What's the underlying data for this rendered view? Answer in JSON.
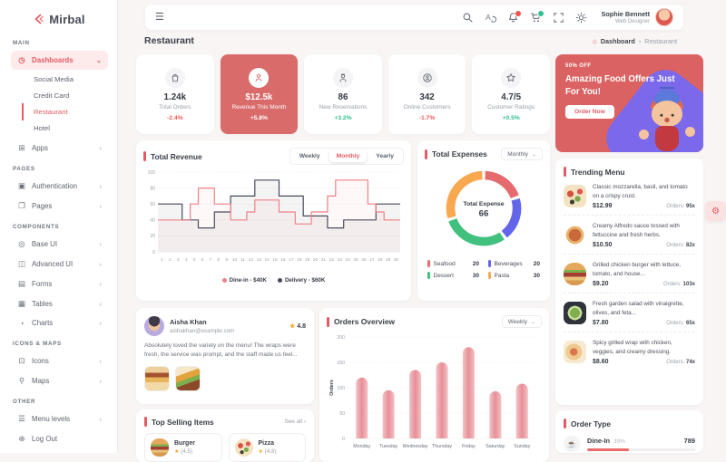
{
  "ui": {
    "chevron_down": "⌄",
    "chevron_right": "›",
    "hamburger": "☰",
    "star": "★",
    "settings_glyph": "⚙",
    "cup_glyph": "☕"
  },
  "sidebar": {
    "logo_text": "Mirbal",
    "section_main": "MAIN",
    "dashboards": {
      "glyph": "◷",
      "label": "Dashboards"
    },
    "dashboard_children": [
      {
        "label": "Social Media",
        "active": false
      },
      {
        "label": "Credit Card",
        "active": false
      },
      {
        "label": "Restaurant",
        "active": true
      },
      {
        "label": "Hotel",
        "active": false
      }
    ],
    "apps": {
      "glyph": "⊞",
      "label": "Apps"
    },
    "section_pages": "PAGES",
    "pages_items": [
      {
        "glyph": "▣",
        "label": "Authentication",
        "arrow_glyph": "›"
      },
      {
        "glyph": "❐",
        "label": "Pages",
        "arrow_glyph": "›"
      }
    ],
    "section_components": "COMPONENTS",
    "components_items": [
      {
        "glyph": "◎",
        "label": "Base UI",
        "arrow_glyph": "›"
      },
      {
        "glyph": "◫",
        "label": "Advanced UI",
        "arrow_glyph": "›"
      },
      {
        "glyph": "▤",
        "label": "Forms",
        "arrow_glyph": "›"
      },
      {
        "glyph": "▦",
        "label": "Tables",
        "arrow_glyph": "›"
      },
      {
        "glyph": "◔",
        "label": "Charts",
        "arrow_glyph": "›"
      }
    ],
    "section_iconsmaps": "ICONS & MAPS",
    "iconsmaps_items": [
      {
        "glyph": "⊡",
        "label": "Icons",
        "arrow_glyph": "›"
      },
      {
        "glyph": "⚲",
        "label": "Maps",
        "arrow_glyph": "›"
      }
    ],
    "section_other": "OTHER",
    "other_items": [
      {
        "glyph": "☰",
        "label": "Menu levels",
        "arrow_glyph": "›"
      },
      {
        "glyph": "⊕",
        "label": "Log Out",
        "arrow_glyph": ""
      }
    ]
  },
  "header": {
    "profile_name": "Sophie Bennett",
    "profile_role": "Web Designer"
  },
  "page": {
    "title": "Restaurant"
  },
  "breadcrumb": {
    "home_glyph": "⌂",
    "section": "Dashboard",
    "separator": "›",
    "current": "Restaurant"
  },
  "stats": [
    {
      "icon": "orders-bag",
      "value": "1.24k",
      "label": "Total Orders",
      "delta": "-2.4%",
      "trend": "down",
      "highlighted": false
    },
    {
      "icon": "revenue-person",
      "value": "$12.5k",
      "label": "Revenue This Month",
      "delta": "+5.8%",
      "trend": "up",
      "highlighted": true
    },
    {
      "icon": "reservations-person",
      "value": "86",
      "label": "New Reservations",
      "delta": "+3.2%",
      "trend": "up",
      "highlighted": false
    },
    {
      "icon": "online-customers",
      "value": "342",
      "label": "Online Customers",
      "delta": "-1.7%",
      "trend": "down",
      "highlighted": false
    },
    {
      "icon": "ratings-star",
      "value": "4.7/5",
      "label": "Customer Ratings",
      "delta": "+0.5%",
      "trend": "up",
      "highlighted": false
    }
  ],
  "promo": {
    "discount_badge": "50% OFF",
    "headline": "Amazing Food Offers Just For You!",
    "cta": "Order Now"
  },
  "chart_data": [
    {
      "id": "total-revenue",
      "type": "line",
      "title": "Total Revenue",
      "tabs": [
        "Weekly",
        "Monthly",
        "Yearly"
      ],
      "active_tab": "Monthly",
      "x": [
        1,
        2,
        3,
        4,
        5,
        6,
        7,
        8,
        9,
        10,
        11,
        12,
        13,
        14,
        15,
        16,
        17,
        18,
        19,
        20,
        21,
        22,
        23,
        24,
        25,
        26,
        27,
        28,
        29,
        30
      ],
      "ylim": [
        0,
        100
      ],
      "yticks": [
        0,
        20,
        40,
        60,
        80,
        100
      ],
      "grid": "dashed-horizontal",
      "legend_position": "bottom",
      "series": [
        {
          "name": "Dine-in - $40K",
          "color": "#ef8086",
          "values": [
            40,
            40,
            40,
            40,
            60,
            80,
            80,
            60,
            60,
            40,
            40,
            50,
            65,
            65,
            65,
            50,
            50,
            35,
            35,
            50,
            50,
            70,
            90,
            90,
            90,
            90,
            60,
            50,
            40,
            40
          ]
        },
        {
          "name": "Delivery - $60K",
          "color": "#454a59",
          "values": [
            60,
            60,
            60,
            40,
            40,
            30,
            30,
            50,
            50,
            70,
            70,
            70,
            90,
            90,
            90,
            70,
            70,
            70,
            45,
            45,
            45,
            30,
            30,
            40,
            40,
            40,
            40,
            60,
            60,
            60
          ]
        }
      ]
    },
    {
      "id": "total-expenses",
      "type": "pie",
      "title": "Total Expenses",
      "period": "Monthly",
      "center_label": "Total Expense",
      "center_value": "66",
      "slices": [
        {
          "label": "Seafood",
          "pct": 20,
          "color": "#e56b6f"
        },
        {
          "label": "Beverages",
          "pct": 20,
          "color": "#6466e9"
        },
        {
          "label": "Dessert",
          "pct": 30,
          "color": "#41c07e"
        },
        {
          "label": "Pasta",
          "pct": 30,
          "color": "#f8a84e"
        }
      ]
    },
    {
      "id": "orders-overview",
      "type": "bar",
      "title": "Orders Overview",
      "period": "Weekly",
      "ylabel": "Orders",
      "categories": [
        "Monday",
        "Tuesday",
        "Wednesday",
        "Thursday",
        "Friday",
        "Saturday",
        "Sunday"
      ],
      "values": [
        120,
        95,
        135,
        150,
        180,
        93,
        108
      ],
      "ylim": [
        0,
        200
      ],
      "yticks": [
        0,
        50,
        100,
        150,
        200
      ],
      "grid": "dashed-horizontal",
      "color": "#e78f97"
    }
  ],
  "review": {
    "name": "Aisha Khan",
    "email": "aishakhan@example.com",
    "rating": "4.8",
    "text": "Absolutely loved the variety on the menu! The wraps were fresh, the service was prompt, and the staff made us feel..."
  },
  "orders_overview_title": "Orders Overview",
  "top_selling": {
    "title": "Top Selling Items",
    "see_all": "See all ›",
    "items": [
      {
        "name": "Burger",
        "rating": "(4.5)"
      },
      {
        "name": "Pizza",
        "rating": "(4.8)"
      }
    ]
  },
  "trending": {
    "title": "Trending Menu",
    "items": [
      {
        "img": "pizza",
        "desc": "Classic mozzarella, basil, and tomato on a crispy crust.",
        "price": "$12.99",
        "orders_label": "Orders:",
        "orders_value": "95x"
      },
      {
        "img": "pasta",
        "desc": "Creamy Alfredo sauce tossed with fettuccine and fresh herbs.",
        "price": "$10.50",
        "orders_label": "Orders:",
        "orders_value": "82x"
      },
      {
        "img": "burger",
        "desc": "Grilled chicken burger with lettuce, tomato, and house...",
        "price": "$9.20",
        "orders_label": "Orders:",
        "orders_value": "103x"
      },
      {
        "img": "salad",
        "desc": "Fresh garden salad with vinaigrette, olives, and feta...",
        "price": "$7.80",
        "orders_label": "Orders:",
        "orders_value": "65x"
      },
      {
        "img": "wrap",
        "desc": "Spicy grilled wrap with chicken, veggies, and creamy dressing.",
        "price": "$8.60",
        "orders_label": "Orders:",
        "orders_value": "74x"
      }
    ]
  },
  "order_type": {
    "title": "Order Type",
    "rows": [
      {
        "label": "Dine-In",
        "pct": "39%",
        "value": "789"
      }
    ]
  }
}
